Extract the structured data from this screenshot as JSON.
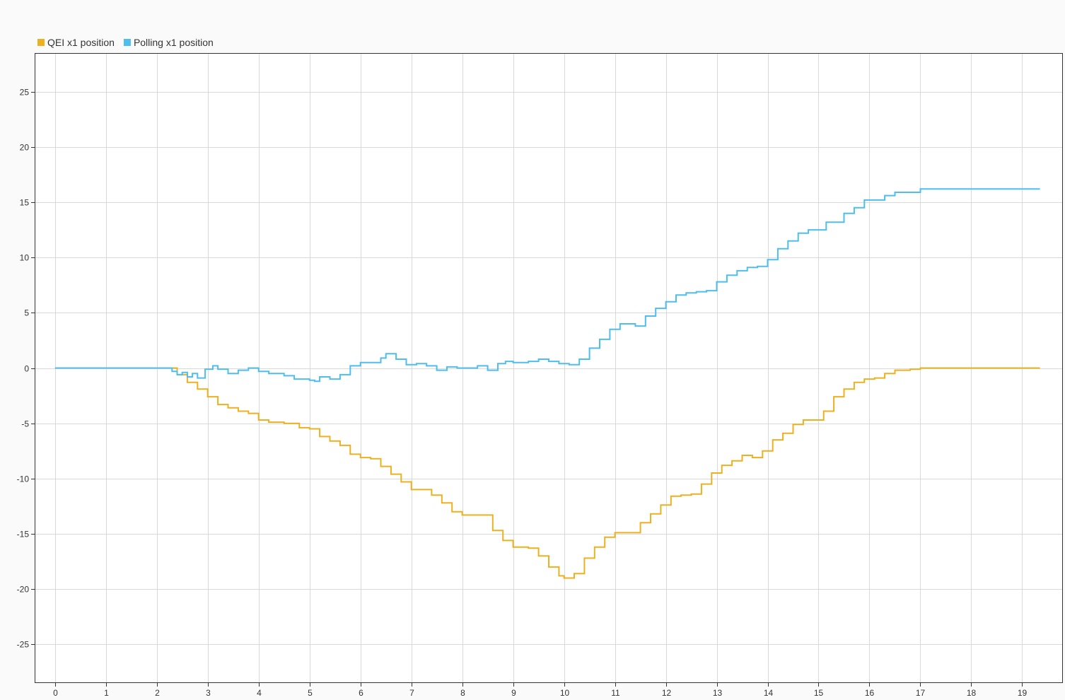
{
  "chart_data": {
    "type": "line",
    "title": "",
    "xlabel": "",
    "ylabel": "",
    "xlim": [
      -0.4,
      19.8
    ],
    "ylim": [
      -28.5,
      28.5
    ],
    "x_ticks": [
      "0",
      "1",
      "2",
      "3",
      "4",
      "5",
      "6",
      "7",
      "8",
      "9",
      "10",
      "11",
      "12",
      "13",
      "14",
      "15",
      "16",
      "17",
      "18",
      "19"
    ],
    "y_ticks": [
      "25",
      "20",
      "15",
      "10",
      "5",
      "0",
      "-5",
      "-10",
      "-15",
      "-20",
      "-25"
    ],
    "grid": true,
    "legend_position": "top-left",
    "series": [
      {
        "name": "QEI x1 position",
        "color": "#EDB120",
        "points": [
          [
            0,
            0
          ],
          [
            2.2,
            0
          ],
          [
            2.4,
            -0.6
          ],
          [
            2.6,
            -1.3
          ],
          [
            2.8,
            -1.9
          ],
          [
            3.0,
            -2.6
          ],
          [
            3.2,
            -3.3
          ],
          [
            3.4,
            -3.6
          ],
          [
            3.6,
            -3.9
          ],
          [
            3.8,
            -4.1
          ],
          [
            4.0,
            -4.7
          ],
          [
            4.2,
            -4.9
          ],
          [
            4.5,
            -5.0
          ],
          [
            4.8,
            -5.4
          ],
          [
            5.0,
            -5.5
          ],
          [
            5.2,
            -6.2
          ],
          [
            5.4,
            -6.6
          ],
          [
            5.6,
            -7.0
          ],
          [
            5.8,
            -7.8
          ],
          [
            6.0,
            -8.1
          ],
          [
            6.2,
            -8.2
          ],
          [
            6.4,
            -8.9
          ],
          [
            6.6,
            -9.6
          ],
          [
            6.8,
            -10.3
          ],
          [
            7.0,
            -11.0
          ],
          [
            7.2,
            -11.0
          ],
          [
            7.4,
            -11.5
          ],
          [
            7.6,
            -12.2
          ],
          [
            7.8,
            -13.0
          ],
          [
            8.0,
            -13.3
          ],
          [
            8.3,
            -13.3
          ],
          [
            8.6,
            -14.7
          ],
          [
            8.8,
            -15.6
          ],
          [
            9.0,
            -16.2
          ],
          [
            9.3,
            -16.3
          ],
          [
            9.5,
            -17.0
          ],
          [
            9.7,
            -18.0
          ],
          [
            9.9,
            -18.8
          ],
          [
            10.0,
            -19.0
          ],
          [
            10.2,
            -18.6
          ],
          [
            10.4,
            -17.2
          ],
          [
            10.6,
            -16.2
          ],
          [
            10.8,
            -15.3
          ],
          [
            11.0,
            -14.9
          ],
          [
            11.3,
            -14.9
          ],
          [
            11.5,
            -14.0
          ],
          [
            11.7,
            -13.2
          ],
          [
            11.9,
            -12.4
          ],
          [
            12.1,
            -11.6
          ],
          [
            12.3,
            -11.5
          ],
          [
            12.5,
            -11.4
          ],
          [
            12.7,
            -10.5
          ],
          [
            12.9,
            -9.5
          ],
          [
            13.1,
            -8.8
          ],
          [
            13.3,
            -8.4
          ],
          [
            13.5,
            -7.9
          ],
          [
            13.7,
            -8.1
          ],
          [
            13.9,
            -7.5
          ],
          [
            14.1,
            -6.5
          ],
          [
            14.3,
            -5.9
          ],
          [
            14.5,
            -5.1
          ],
          [
            14.7,
            -4.7
          ],
          [
            14.9,
            -4.7
          ],
          [
            15.1,
            -3.9
          ],
          [
            15.3,
            -2.6
          ],
          [
            15.5,
            -1.9
          ],
          [
            15.7,
            -1.3
          ],
          [
            15.9,
            -1.0
          ],
          [
            16.1,
            -0.9
          ],
          [
            16.3,
            -0.5
          ],
          [
            16.5,
            -0.2
          ],
          [
            16.8,
            -0.1
          ],
          [
            17.0,
            0
          ],
          [
            19.35,
            0
          ]
        ]
      },
      {
        "name": "Polling x1 position",
        "color": "#4DBEEE",
        "points": [
          [
            0,
            0
          ],
          [
            2.2,
            0
          ],
          [
            2.3,
            -0.3
          ],
          [
            2.4,
            -0.6
          ],
          [
            2.5,
            -0.4
          ],
          [
            2.6,
            -0.8
          ],
          [
            2.7,
            -0.5
          ],
          [
            2.8,
            -0.9
          ],
          [
            2.95,
            -0.1
          ],
          [
            3.1,
            0.2
          ],
          [
            3.2,
            -0.1
          ],
          [
            3.4,
            -0.5
          ],
          [
            3.6,
            -0.2
          ],
          [
            3.8,
            0
          ],
          [
            4.0,
            -0.3
          ],
          [
            4.2,
            -0.5
          ],
          [
            4.5,
            -0.7
          ],
          [
            4.7,
            -1.0
          ],
          [
            5.0,
            -1.1
          ],
          [
            5.1,
            -1.2
          ],
          [
            5.2,
            -0.8
          ],
          [
            5.4,
            -1.0
          ],
          [
            5.6,
            -0.6
          ],
          [
            5.8,
            0.2
          ],
          [
            6.0,
            0.5
          ],
          [
            6.2,
            0.5
          ],
          [
            6.4,
            0.9
          ],
          [
            6.5,
            1.3
          ],
          [
            6.7,
            0.8
          ],
          [
            6.9,
            0.3
          ],
          [
            7.1,
            0.4
          ],
          [
            7.3,
            0.2
          ],
          [
            7.5,
            -0.2
          ],
          [
            7.7,
            0.1
          ],
          [
            7.9,
            0
          ],
          [
            8.1,
            0
          ],
          [
            8.3,
            0.2
          ],
          [
            8.5,
            -0.2
          ],
          [
            8.7,
            0.4
          ],
          [
            8.85,
            0.6
          ],
          [
            9.0,
            0.5
          ],
          [
            9.3,
            0.6
          ],
          [
            9.5,
            0.8
          ],
          [
            9.7,
            0.6
          ],
          [
            9.9,
            0.4
          ],
          [
            10.1,
            0.3
          ],
          [
            10.3,
            0.8
          ],
          [
            10.5,
            1.8
          ],
          [
            10.7,
            2.6
          ],
          [
            10.9,
            3.5
          ],
          [
            11.1,
            4.0
          ],
          [
            11.3,
            4.0
          ],
          [
            11.4,
            3.8
          ],
          [
            11.6,
            4.7
          ],
          [
            11.8,
            5.4
          ],
          [
            12.0,
            6.0
          ],
          [
            12.2,
            6.6
          ],
          [
            12.4,
            6.8
          ],
          [
            12.6,
            6.9
          ],
          [
            12.8,
            7.0
          ],
          [
            13.0,
            7.8
          ],
          [
            13.2,
            8.4
          ],
          [
            13.4,
            8.8
          ],
          [
            13.6,
            9.1
          ],
          [
            13.8,
            9.2
          ],
          [
            14.0,
            9.8
          ],
          [
            14.2,
            10.8
          ],
          [
            14.4,
            11.5
          ],
          [
            14.6,
            12.2
          ],
          [
            14.8,
            12.5
          ],
          [
            15.0,
            12.5
          ],
          [
            15.15,
            13.2
          ],
          [
            15.3,
            13.2
          ],
          [
            15.5,
            14.0
          ],
          [
            15.7,
            14.5
          ],
          [
            15.9,
            15.2
          ],
          [
            16.1,
            15.2
          ],
          [
            16.3,
            15.6
          ],
          [
            16.5,
            15.9
          ],
          [
            16.8,
            15.9
          ],
          [
            17.0,
            16.2
          ],
          [
            19.35,
            16.2
          ]
        ]
      }
    ]
  }
}
